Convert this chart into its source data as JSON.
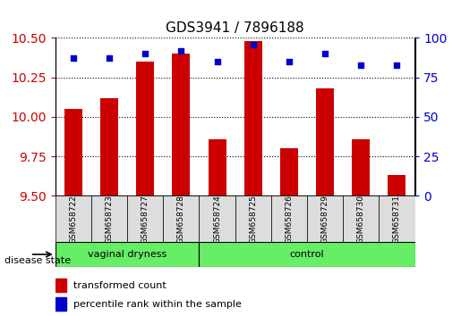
{
  "title": "GDS3941 / 7896188",
  "samples": [
    "GSM658722",
    "GSM658723",
    "GSM658727",
    "GSM658728",
    "GSM658724",
    "GSM658725",
    "GSM658726",
    "GSM658729",
    "GSM658730",
    "GSM658731"
  ],
  "bar_values": [
    10.05,
    10.12,
    10.35,
    10.4,
    9.86,
    10.48,
    9.8,
    10.18,
    9.86,
    9.63
  ],
  "percentile_values": [
    87,
    87,
    90,
    92,
    85,
    96,
    85,
    90,
    83,
    83
  ],
  "ylim_left": [
    9.5,
    10.5
  ],
  "ylim_right": [
    0,
    100
  ],
  "yticks_left": [
    9.5,
    9.75,
    10.0,
    10.25,
    10.5
  ],
  "yticks_right": [
    0,
    25,
    50,
    75,
    100
  ],
  "bar_color": "#cc0000",
  "dot_color": "#0000cc",
  "bar_baseline": 9.5,
  "group1_label": "vaginal dryness",
  "group1_count": 4,
  "group2_label": "control",
  "group2_count": 6,
  "group_color": "#66ee66",
  "disease_state_label": "disease state",
  "legend_items": [
    "transformed count",
    "percentile rank within the sample"
  ],
  "grid_color": "#000000",
  "tick_label_color_left": "#cc0000",
  "tick_label_color_right": "#0000cc",
  "bg_color": "#ffffff",
  "plot_bg_color": "#ffffff",
  "xlabel_area_color": "#dddddd"
}
